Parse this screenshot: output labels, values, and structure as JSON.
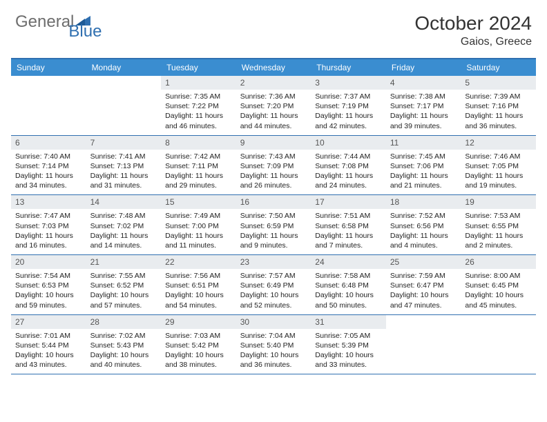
{
  "logo": {
    "word1": "General",
    "word2": "Blue",
    "word1_color": "#6d6d6d",
    "word2_color": "#2f6fb0",
    "icon_color": "#2f6fb0"
  },
  "title": "October 2024",
  "location": "Gaios, Greece",
  "colors": {
    "header_bar": "#3a8dd0",
    "border": "#2f6fb0",
    "daynum_bg": "#e9ecef",
    "text": "#222222",
    "title_text": "#333333"
  },
  "weekdays": [
    "Sunday",
    "Monday",
    "Tuesday",
    "Wednesday",
    "Thursday",
    "Friday",
    "Saturday"
  ],
  "weeks": [
    [
      {
        "day": "",
        "sunrise": "",
        "sunset": "",
        "daylight": ""
      },
      {
        "day": "",
        "sunrise": "",
        "sunset": "",
        "daylight": ""
      },
      {
        "day": "1",
        "sunrise": "Sunrise: 7:35 AM",
        "sunset": "Sunset: 7:22 PM",
        "daylight": "Daylight: 11 hours and 46 minutes."
      },
      {
        "day": "2",
        "sunrise": "Sunrise: 7:36 AM",
        "sunset": "Sunset: 7:20 PM",
        "daylight": "Daylight: 11 hours and 44 minutes."
      },
      {
        "day": "3",
        "sunrise": "Sunrise: 7:37 AM",
        "sunset": "Sunset: 7:19 PM",
        "daylight": "Daylight: 11 hours and 42 minutes."
      },
      {
        "day": "4",
        "sunrise": "Sunrise: 7:38 AM",
        "sunset": "Sunset: 7:17 PM",
        "daylight": "Daylight: 11 hours and 39 minutes."
      },
      {
        "day": "5",
        "sunrise": "Sunrise: 7:39 AM",
        "sunset": "Sunset: 7:16 PM",
        "daylight": "Daylight: 11 hours and 36 minutes."
      }
    ],
    [
      {
        "day": "6",
        "sunrise": "Sunrise: 7:40 AM",
        "sunset": "Sunset: 7:14 PM",
        "daylight": "Daylight: 11 hours and 34 minutes."
      },
      {
        "day": "7",
        "sunrise": "Sunrise: 7:41 AM",
        "sunset": "Sunset: 7:13 PM",
        "daylight": "Daylight: 11 hours and 31 minutes."
      },
      {
        "day": "8",
        "sunrise": "Sunrise: 7:42 AM",
        "sunset": "Sunset: 7:11 PM",
        "daylight": "Daylight: 11 hours and 29 minutes."
      },
      {
        "day": "9",
        "sunrise": "Sunrise: 7:43 AM",
        "sunset": "Sunset: 7:09 PM",
        "daylight": "Daylight: 11 hours and 26 minutes."
      },
      {
        "day": "10",
        "sunrise": "Sunrise: 7:44 AM",
        "sunset": "Sunset: 7:08 PM",
        "daylight": "Daylight: 11 hours and 24 minutes."
      },
      {
        "day": "11",
        "sunrise": "Sunrise: 7:45 AM",
        "sunset": "Sunset: 7:06 PM",
        "daylight": "Daylight: 11 hours and 21 minutes."
      },
      {
        "day": "12",
        "sunrise": "Sunrise: 7:46 AM",
        "sunset": "Sunset: 7:05 PM",
        "daylight": "Daylight: 11 hours and 19 minutes."
      }
    ],
    [
      {
        "day": "13",
        "sunrise": "Sunrise: 7:47 AM",
        "sunset": "Sunset: 7:03 PM",
        "daylight": "Daylight: 11 hours and 16 minutes."
      },
      {
        "day": "14",
        "sunrise": "Sunrise: 7:48 AM",
        "sunset": "Sunset: 7:02 PM",
        "daylight": "Daylight: 11 hours and 14 minutes."
      },
      {
        "day": "15",
        "sunrise": "Sunrise: 7:49 AM",
        "sunset": "Sunset: 7:00 PM",
        "daylight": "Daylight: 11 hours and 11 minutes."
      },
      {
        "day": "16",
        "sunrise": "Sunrise: 7:50 AM",
        "sunset": "Sunset: 6:59 PM",
        "daylight": "Daylight: 11 hours and 9 minutes."
      },
      {
        "day": "17",
        "sunrise": "Sunrise: 7:51 AM",
        "sunset": "Sunset: 6:58 PM",
        "daylight": "Daylight: 11 hours and 7 minutes."
      },
      {
        "day": "18",
        "sunrise": "Sunrise: 7:52 AM",
        "sunset": "Sunset: 6:56 PM",
        "daylight": "Daylight: 11 hours and 4 minutes."
      },
      {
        "day": "19",
        "sunrise": "Sunrise: 7:53 AM",
        "sunset": "Sunset: 6:55 PM",
        "daylight": "Daylight: 11 hours and 2 minutes."
      }
    ],
    [
      {
        "day": "20",
        "sunrise": "Sunrise: 7:54 AM",
        "sunset": "Sunset: 6:53 PM",
        "daylight": "Daylight: 10 hours and 59 minutes."
      },
      {
        "day": "21",
        "sunrise": "Sunrise: 7:55 AM",
        "sunset": "Sunset: 6:52 PM",
        "daylight": "Daylight: 10 hours and 57 minutes."
      },
      {
        "day": "22",
        "sunrise": "Sunrise: 7:56 AM",
        "sunset": "Sunset: 6:51 PM",
        "daylight": "Daylight: 10 hours and 54 minutes."
      },
      {
        "day": "23",
        "sunrise": "Sunrise: 7:57 AM",
        "sunset": "Sunset: 6:49 PM",
        "daylight": "Daylight: 10 hours and 52 minutes."
      },
      {
        "day": "24",
        "sunrise": "Sunrise: 7:58 AM",
        "sunset": "Sunset: 6:48 PM",
        "daylight": "Daylight: 10 hours and 50 minutes."
      },
      {
        "day": "25",
        "sunrise": "Sunrise: 7:59 AM",
        "sunset": "Sunset: 6:47 PM",
        "daylight": "Daylight: 10 hours and 47 minutes."
      },
      {
        "day": "26",
        "sunrise": "Sunrise: 8:00 AM",
        "sunset": "Sunset: 6:45 PM",
        "daylight": "Daylight: 10 hours and 45 minutes."
      }
    ],
    [
      {
        "day": "27",
        "sunrise": "Sunrise: 7:01 AM",
        "sunset": "Sunset: 5:44 PM",
        "daylight": "Daylight: 10 hours and 43 minutes."
      },
      {
        "day": "28",
        "sunrise": "Sunrise: 7:02 AM",
        "sunset": "Sunset: 5:43 PM",
        "daylight": "Daylight: 10 hours and 40 minutes."
      },
      {
        "day": "29",
        "sunrise": "Sunrise: 7:03 AM",
        "sunset": "Sunset: 5:42 PM",
        "daylight": "Daylight: 10 hours and 38 minutes."
      },
      {
        "day": "30",
        "sunrise": "Sunrise: 7:04 AM",
        "sunset": "Sunset: 5:40 PM",
        "daylight": "Daylight: 10 hours and 36 minutes."
      },
      {
        "day": "31",
        "sunrise": "Sunrise: 7:05 AM",
        "sunset": "Sunset: 5:39 PM",
        "daylight": "Daylight: 10 hours and 33 minutes."
      },
      {
        "day": "",
        "sunrise": "",
        "sunset": "",
        "daylight": ""
      },
      {
        "day": "",
        "sunrise": "",
        "sunset": "",
        "daylight": ""
      }
    ]
  ]
}
